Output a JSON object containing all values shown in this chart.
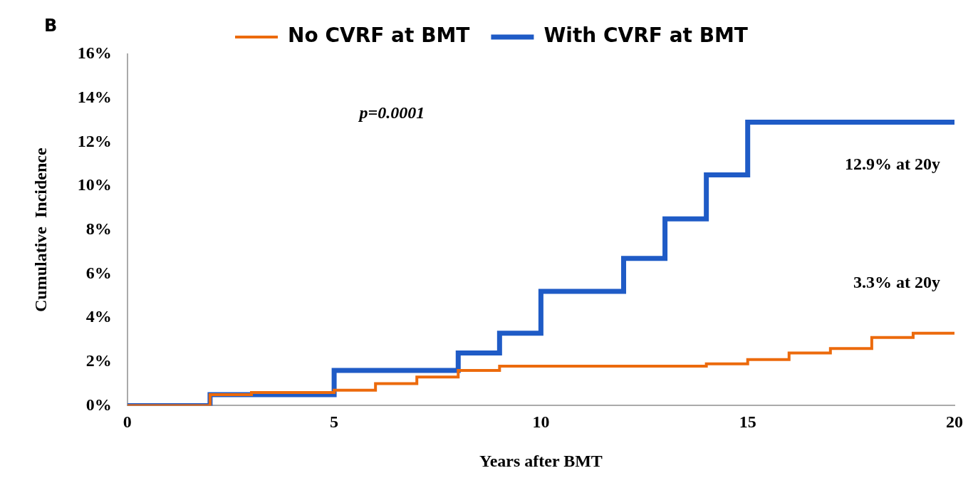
{
  "chart_data": {
    "type": "step",
    "xlabel": "Years after BMT",
    "ylabel": "Cumulative  Incidence",
    "annotations": [
      "B",
      "p=0.0001",
      {
        "text": "12.9% at 20y",
        "x": 20,
        "y": 12.9
      },
      {
        "text": "3.3% at 20y",
        "x": 20,
        "y": 3.3
      }
    ],
    "series": [
      {
        "name": "With CVRF at BMT",
        "color": "#1f5bc6",
        "x": [
          0,
          2,
          5,
          8,
          9,
          10,
          12,
          13,
          14,
          15,
          20
        ],
        "values": [
          0,
          0.5,
          1.6,
          2.4,
          3.3,
          5.2,
          6.7,
          8.5,
          10.5,
          12.9,
          12.9
        ]
      },
      {
        "name": "No CVRF at BMT",
        "color": "#ec6a0c",
        "x": [
          0,
          2,
          3,
          5,
          6,
          7,
          8,
          9,
          14,
          15,
          16,
          17,
          18,
          19,
          20
        ],
        "values": [
          0,
          0.5,
          0.6,
          0.7,
          1.0,
          1.3,
          1.6,
          1.8,
          1.9,
          2.1,
          2.4,
          2.6,
          3.1,
          3.3,
          3.3
        ]
      }
    ],
    "xlim": [
      0,
      20
    ],
    "xticks": [
      0,
      5,
      10,
      15,
      20
    ],
    "ylim": [
      0,
      16
    ],
    "yticks": [
      {
        "value": 0,
        "label": "0%"
      },
      {
        "value": 2,
        "label": "2%"
      },
      {
        "value": 4,
        "label": "4%"
      },
      {
        "value": 6,
        "label": "6%"
      },
      {
        "value": 8,
        "label": "8%"
      },
      {
        "value": 10,
        "label": "10%"
      },
      {
        "value": 12,
        "label": "12%"
      },
      {
        "value": 14,
        "label": "14%"
      },
      {
        "value": 16,
        "label": "16%"
      }
    ],
    "grid": false,
    "legend": "top",
    "marker": "none",
    "line_style": "solid"
  }
}
